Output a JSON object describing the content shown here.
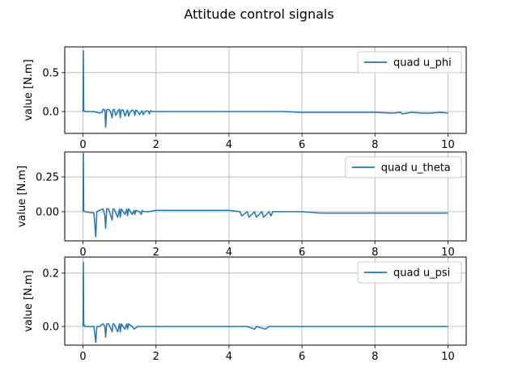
{
  "figure_title": "Attitude control signals",
  "colors": {
    "series": "#1f77b4"
  },
  "chart_data": [
    {
      "type": "line",
      "ylabel": "value [N.m]",
      "xlim": [
        -0.5,
        10.5
      ],
      "ylim": [
        -0.28,
        0.83
      ],
      "xticks": [
        0,
        2,
        4,
        6,
        8,
        10
      ],
      "yticks": [
        0.0,
        0.5
      ],
      "ytick_labels": [
        "0.0",
        "0.5"
      ],
      "grid": true,
      "legend_position": "upper right",
      "series": [
        {
          "name": "quad u_phi",
          "x": [
            0,
            0.01,
            0.02,
            0.05,
            0.3,
            0.45,
            0.52,
            0.55,
            0.6,
            0.62,
            0.65,
            0.7,
            0.75,
            0.8,
            0.82,
            0.85,
            0.9,
            0.95,
            1.0,
            1.02,
            1.05,
            1.1,
            1.15,
            1.2,
            1.22,
            1.25,
            1.3,
            1.35,
            1.4,
            1.42,
            1.45,
            1.5,
            1.55,
            1.6,
            1.62,
            1.65,
            1.7,
            1.75,
            1.8,
            1.82,
            1.85,
            1.9,
            2.0,
            2.5,
            3.0,
            3.5,
            4.0,
            4.5,
            5.0,
            5.5,
            6.0,
            6.5,
            7.0,
            7.5,
            8.0,
            8.5,
            8.7,
            8.75,
            9.0,
            9.3,
            9.5,
            9.8,
            10.0
          ],
          "y": [
            0.0,
            0.78,
            0.02,
            0.0,
            0.0,
            -0.02,
            -0.01,
            0.03,
            0.02,
            -0.2,
            0.02,
            0.03,
            0.0,
            -0.08,
            0.02,
            0.03,
            -0.05,
            0.0,
            0.03,
            -0.08,
            0.02,
            0.02,
            -0.06,
            0.0,
            0.02,
            -0.06,
            0.0,
            0.02,
            0.0,
            -0.05,
            0.02,
            0.0,
            -0.04,
            0.0,
            0.01,
            -0.04,
            0.0,
            0.01,
            0.0,
            -0.03,
            0.01,
            0.0,
            0.0,
            0.0,
            0.0,
            0.0,
            0.0,
            0.0,
            0.0,
            0.0,
            -0.01,
            -0.01,
            -0.01,
            -0.01,
            -0.01,
            -0.02,
            -0.01,
            -0.03,
            -0.01,
            -0.02,
            -0.02,
            -0.01,
            -0.02
          ]
        }
      ]
    },
    {
      "type": "line",
      "ylabel": "value [N.m]",
      "xlim": [
        -0.5,
        10.5
      ],
      "ylim": [
        -0.21,
        0.43
      ],
      "xticks": [
        0,
        2,
        4,
        6,
        8,
        10
      ],
      "yticks": [
        0.0,
        0.25
      ],
      "ytick_labels": [
        "0.00",
        "0.25"
      ],
      "grid": true,
      "legend_position": "upper right",
      "series": [
        {
          "name": "quad u_theta",
          "x": [
            0,
            0.01,
            0.02,
            0.05,
            0.3,
            0.35,
            0.38,
            0.45,
            0.55,
            0.6,
            0.62,
            0.65,
            0.7,
            0.8,
            0.82,
            0.85,
            0.95,
            1.0,
            1.02,
            1.05,
            1.15,
            1.2,
            1.22,
            1.25,
            1.35,
            1.4,
            1.42,
            1.45,
            1.55,
            1.6,
            1.62,
            1.65,
            1.8,
            2.0,
            2.5,
            3.0,
            3.5,
            4.0,
            4.3,
            4.35,
            4.5,
            4.55,
            4.7,
            4.75,
            4.9,
            4.95,
            5.1,
            5.15,
            5.2,
            5.5,
            6.0,
            6.5,
            7.0,
            7.5,
            8.0,
            8.5,
            9.0,
            9.5,
            10.0
          ],
          "y": [
            0.0,
            0.42,
            0.01,
            0.0,
            -0.01,
            -0.18,
            0.0,
            0.01,
            0.02,
            -0.03,
            -0.12,
            0.02,
            0.02,
            -0.06,
            0.02,
            0.02,
            -0.04,
            0.02,
            -0.04,
            0.02,
            -0.02,
            0.02,
            -0.03,
            0.02,
            -0.02,
            0.01,
            -0.02,
            0.01,
            0.0,
            -0.02,
            0.01,
            0.0,
            0.0,
            0.01,
            0.01,
            0.01,
            0.01,
            0.01,
            0.0,
            -0.03,
            0.0,
            -0.04,
            0.0,
            -0.04,
            0.0,
            -0.04,
            0.0,
            -0.03,
            0.0,
            0.0,
            0.0,
            -0.01,
            -0.01,
            -0.01,
            -0.01,
            -0.01,
            -0.01,
            -0.01,
            -0.01
          ]
        }
      ]
    },
    {
      "type": "line",
      "ylabel": "value [N.m]",
      "xlim": [
        -0.5,
        10.5
      ],
      "ylim": [
        -0.07,
        0.26
      ],
      "xticks": [
        0,
        2,
        4,
        6,
        8,
        10
      ],
      "yticks": [
        0.0,
        0.2
      ],
      "ytick_labels": [
        "0.0",
        "0.2"
      ],
      "grid": true,
      "legend_position": "upper right",
      "series": [
        {
          "name": "quad u_psi",
          "x": [
            0,
            0.01,
            0.02,
            0.05,
            0.3,
            0.35,
            0.38,
            0.45,
            0.55,
            0.6,
            0.62,
            0.65,
            0.7,
            0.8,
            0.82,
            0.85,
            0.95,
            1.0,
            1.02,
            1.05,
            1.15,
            1.2,
            1.22,
            1.25,
            1.35,
            1.4,
            1.5,
            1.6,
            1.8,
            2.0,
            2.5,
            3.0,
            3.5,
            4.0,
            4.5,
            4.7,
            4.75,
            5.0,
            5.1,
            5.5,
            6.0,
            6.5,
            7.0,
            7.5,
            8.0,
            8.5,
            9.0,
            9.5,
            10.0
          ],
          "y": [
            0.0,
            0.24,
            0.01,
            0.0,
            0.0,
            -0.06,
            0.0,
            0.0,
            0.01,
            0.0,
            -0.04,
            0.01,
            0.01,
            -0.02,
            0.01,
            0.01,
            -0.02,
            0.01,
            -0.02,
            0.01,
            -0.01,
            0.01,
            -0.01,
            0.01,
            0.0,
            -0.01,
            0.0,
            0.0,
            0.0,
            0.0,
            0.0,
            0.0,
            0.0,
            0.0,
            0.0,
            -0.01,
            0.0,
            -0.01,
            0.0,
            0.0,
            0.0,
            0.0,
            0.0,
            0.0,
            0.0,
            0.0,
            0.0,
            0.0,
            0.0
          ]
        }
      ]
    }
  ]
}
